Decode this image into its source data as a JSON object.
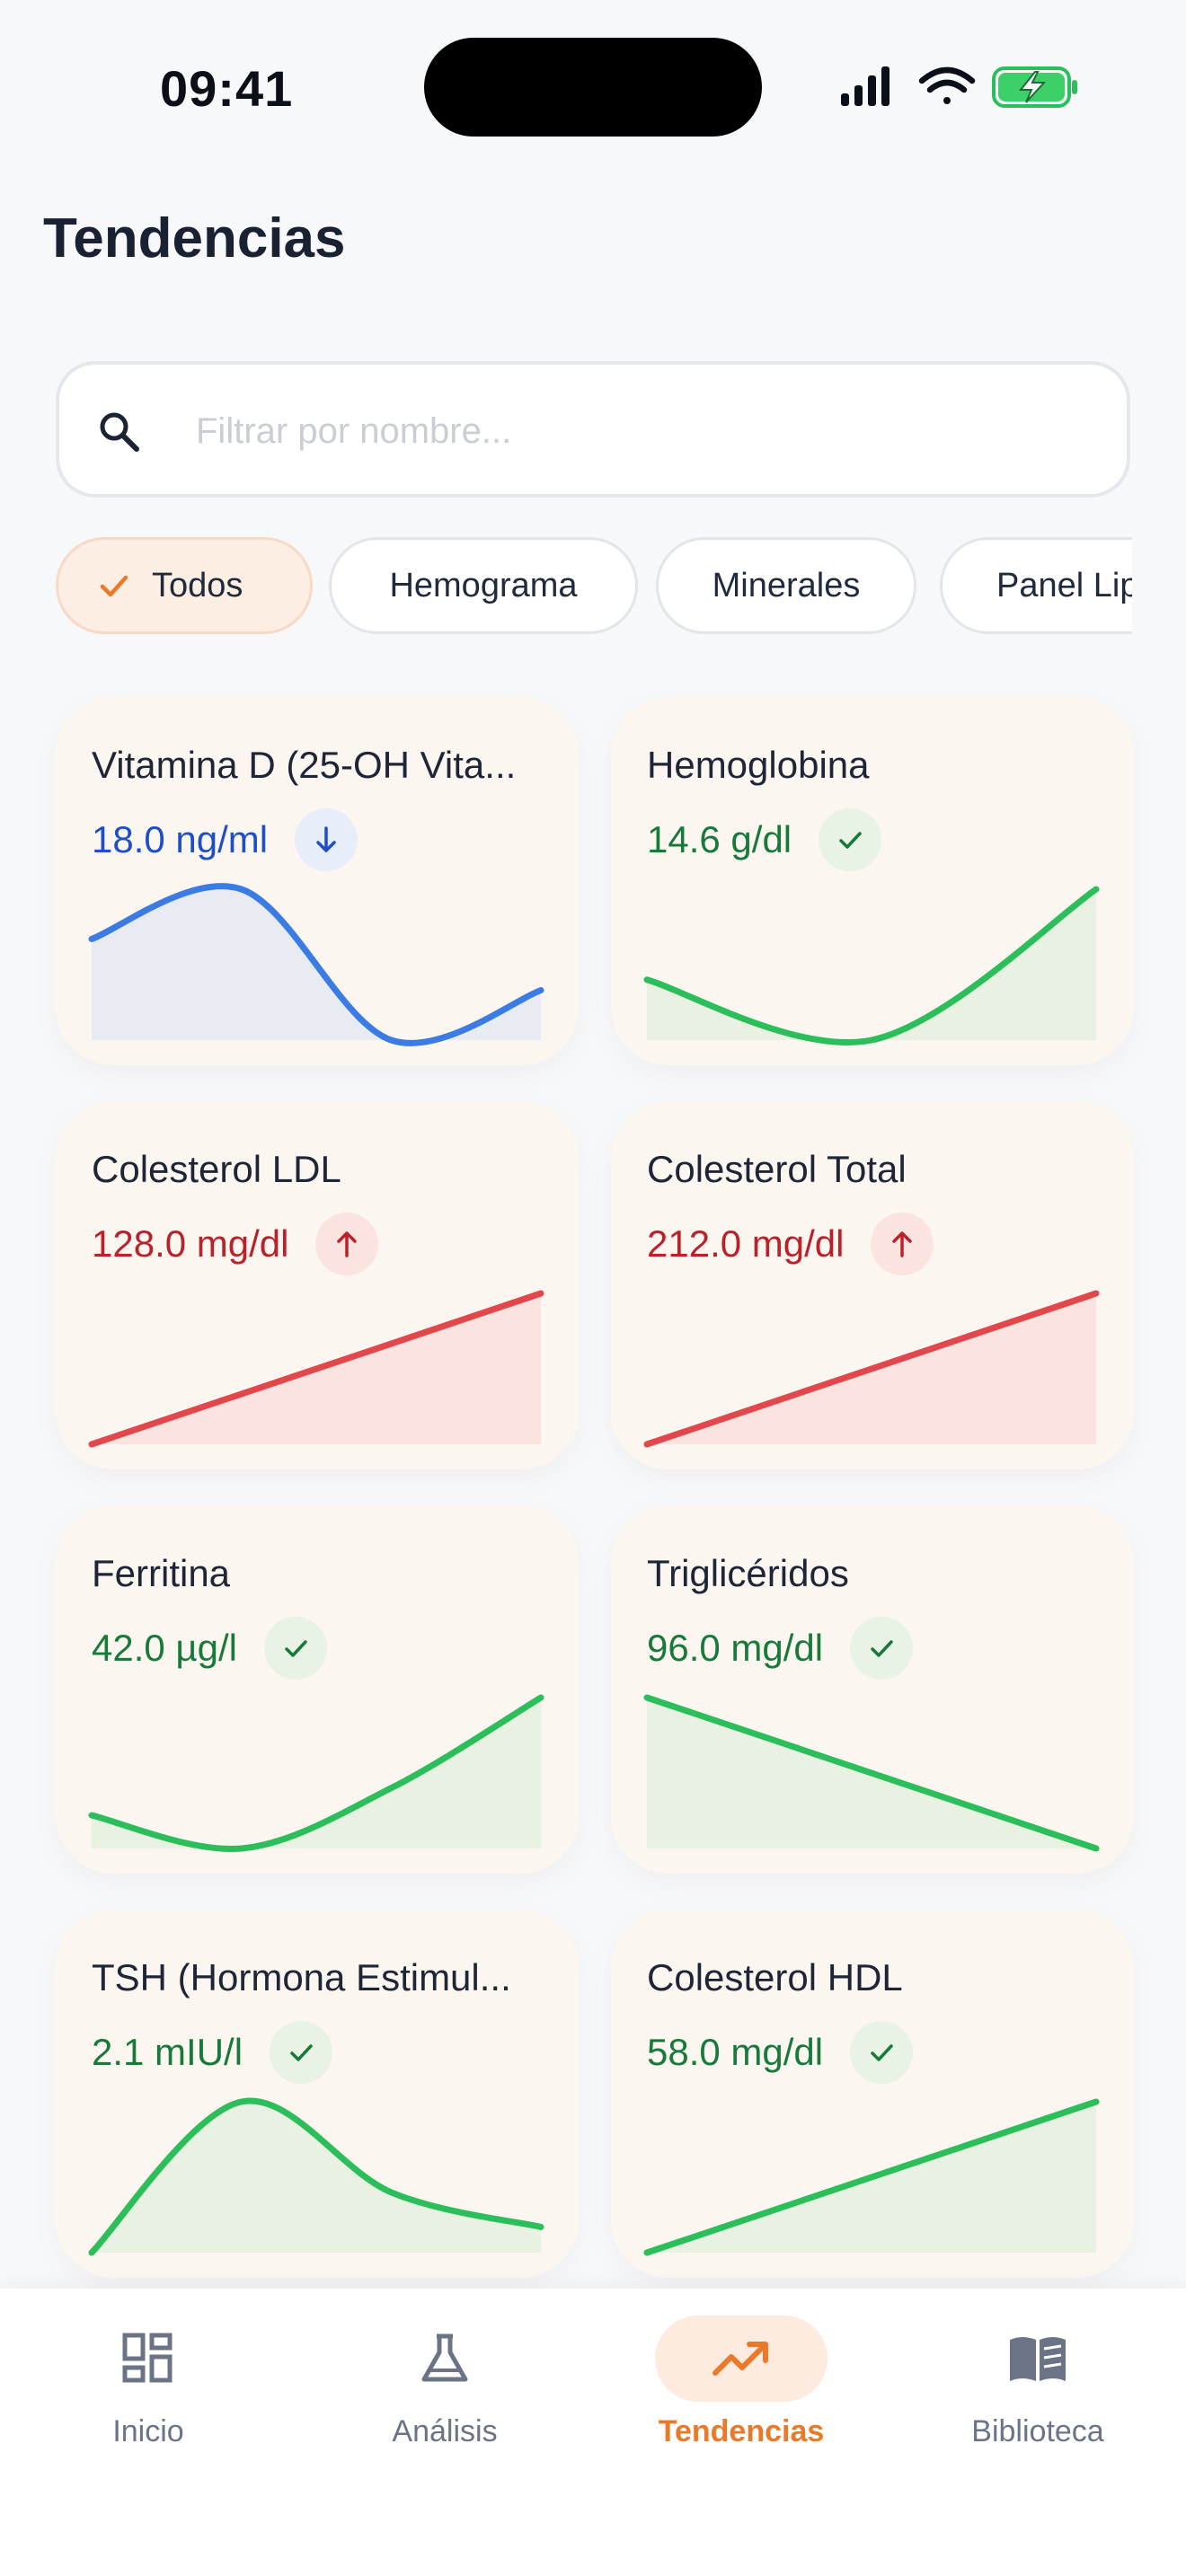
{
  "status_bar": {
    "time": "09:41"
  },
  "page": {
    "title": "Tendencias"
  },
  "search": {
    "placeholder": "Filtrar por nombre..."
  },
  "filters": [
    {
      "label": "Todos",
      "active": true
    },
    {
      "label": "Hemograma",
      "active": false
    },
    {
      "label": "Minerales",
      "active": false
    },
    {
      "label": "Panel Lipídico",
      "active": false
    }
  ],
  "cards": [
    {
      "name": "Vitamina D (25-OH Vita...",
      "value": "18.0 ng/ml",
      "status": "low",
      "status_icon": "arrow-down-icon",
      "trend": [
        0.67,
        1.0,
        0.0,
        0.33
      ],
      "colors": {
        "text": "#1f4fc7",
        "line": "#3b7be4",
        "fill": "#e9ebf3",
        "badge": "#e7edf9"
      }
    },
    {
      "name": "Hemoglobina",
      "value": "14.6 g/dl",
      "status": "normal",
      "status_icon": "check-icon",
      "trend": [
        0.4,
        0.0,
        1.0
      ],
      "colors": {
        "text": "#177a3a",
        "line": "#2cbe5a",
        "fill": "#e8f1e2",
        "badge": "#e8f2e5"
      }
    },
    {
      "name": "Colesterol LDL",
      "value": "128.0 mg/dl",
      "status": "high",
      "status_icon": "arrow-up-icon",
      "trend": [
        0.0,
        1.0
      ],
      "colors": {
        "text": "#b9222a",
        "line": "#e2474b",
        "fill": "#fbe3df",
        "badge": "#fbe4e0"
      }
    },
    {
      "name": "Colesterol Total",
      "value": "212.0 mg/dl",
      "status": "high",
      "status_icon": "arrow-up-icon",
      "trend": [
        0.0,
        1.0
      ],
      "colors": {
        "text": "#b9222a",
        "line": "#e2474b",
        "fill": "#fbe3df",
        "badge": "#fbe4e0"
      }
    },
    {
      "name": "Ferritina",
      "value": "42.0 µg/l",
      "status": "normal",
      "status_icon": "check-icon",
      "trend": [
        0.22,
        0.0,
        0.4,
        1.0
      ],
      "colors": {
        "text": "#177a3a",
        "line": "#2cbe5a",
        "fill": "#e8f1e2",
        "badge": "#e8f2e5"
      }
    },
    {
      "name": "Triglicéridos",
      "value": "96.0 mg/dl",
      "status": "normal",
      "status_icon": "check-icon",
      "trend": [
        1.0,
        0.0
      ],
      "colors": {
        "text": "#177a3a",
        "line": "#2cbe5a",
        "fill": "#e8f1e2",
        "badge": "#e8f2e5"
      }
    },
    {
      "name": "TSH (Hormona Estimul...",
      "value": "2.1 mIU/l",
      "status": "normal",
      "status_icon": "check-icon",
      "trend": [
        0.0,
        1.0,
        0.4,
        0.17
      ],
      "colors": {
        "text": "#177a3a",
        "line": "#2cbe5a",
        "fill": "#e8f1e2",
        "badge": "#e8f2e5"
      }
    },
    {
      "name": "Colesterol HDL",
      "value": "58.0 mg/dl",
      "status": "normal",
      "status_icon": "check-icon",
      "trend": [
        0.0,
        1.0
      ],
      "colors": {
        "text": "#177a3a",
        "line": "#2cbe5a",
        "fill": "#e8f1e2",
        "badge": "#e8f2e5"
      }
    }
  ],
  "bottom_nav": [
    {
      "label": "Inicio",
      "icon": "dashboard-icon",
      "active": false
    },
    {
      "label": "Análisis",
      "icon": "flask-icon",
      "active": false
    },
    {
      "label": "Tendencias",
      "icon": "trending-up-icon",
      "active": true
    },
    {
      "label": "Biblioteca",
      "icon": "book-icon",
      "active": false
    }
  ],
  "accent_color": "#ea7a2a"
}
